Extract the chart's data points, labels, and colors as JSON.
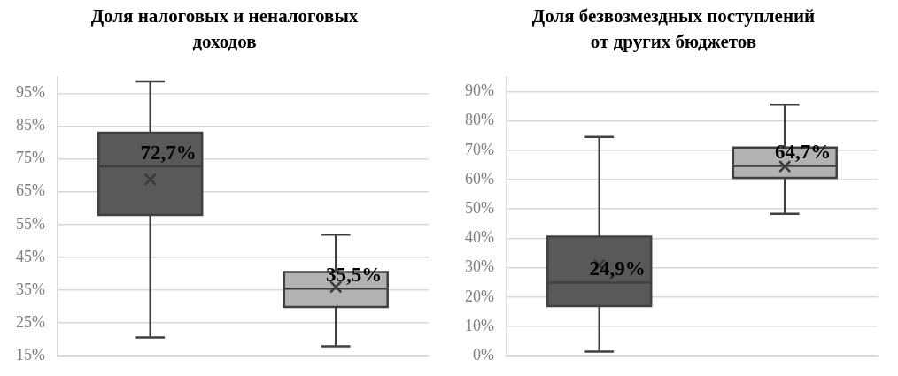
{
  "chart_data": [
    {
      "type": "box",
      "title": "Доля налоговых и неналоговых доходов",
      "categories": [
        null,
        null
      ],
      "colors": [
        "#595959",
        "#b2b2b2"
      ],
      "boxes": [
        {
          "low": 20.6,
          "q1": 57.9,
          "median": 72.7,
          "q3": 83.0,
          "high": 98.6,
          "mean": 68.7
        },
        {
          "low": 17.9,
          "q1": 29.9,
          "median": 35.5,
          "q3": 40.5,
          "high": 51.9,
          "mean": 36.0
        }
      ],
      "value_labels": [
        "72,7%",
        "35,5%"
      ],
      "ylim": [
        15,
        100
      ],
      "yticks": [
        {
          "value": 15,
          "label": "15%"
        },
        {
          "value": 25,
          "label": "25%"
        },
        {
          "value": 35,
          "label": "35%"
        },
        {
          "value": 45,
          "label": "45%"
        },
        {
          "value": 55,
          "label": "55%"
        },
        {
          "value": 65,
          "label": "65%"
        },
        {
          "value": 75,
          "label": "75%"
        },
        {
          "value": 85,
          "label": "85%"
        },
        {
          "value": 95,
          "label": "95%"
        }
      ],
      "grid": "y",
      "tick_labels": "y",
      "legend": false
    },
    {
      "type": "box",
      "title": "Доля безвозмездных поступлений от других бюджетов",
      "categories": [
        null,
        null
      ],
      "colors": [
        "#595959",
        "#b2b2b2"
      ],
      "boxes": [
        {
          "low": 1.4,
          "q1": 16.9,
          "median": 24.9,
          "q3": 40.6,
          "high": 74.5,
          "mean": 30.9
        },
        {
          "low": 48.3,
          "q1": 60.6,
          "median": 64.7,
          "q3": 70.9,
          "high": 85.5,
          "mean": 64.5
        }
      ],
      "value_labels": [
        "24,9%",
        "64,7%"
      ],
      "ylim": [
        0,
        95
      ],
      "yticks": [
        {
          "value": 0,
          "label": "0%"
        },
        {
          "value": 10,
          "label": "10%"
        },
        {
          "value": 20,
          "label": "20%"
        },
        {
          "value": 30,
          "label": "30%"
        },
        {
          "value": 40,
          "label": "40%"
        },
        {
          "value": 50,
          "label": "50%"
        },
        {
          "value": 60,
          "label": "60%"
        },
        {
          "value": 70,
          "label": "70%"
        },
        {
          "value": 80,
          "label": "80%"
        },
        {
          "value": 90,
          "label": "90%"
        }
      ],
      "grid": "y",
      "tick_labels": "y",
      "legend": false
    }
  ]
}
